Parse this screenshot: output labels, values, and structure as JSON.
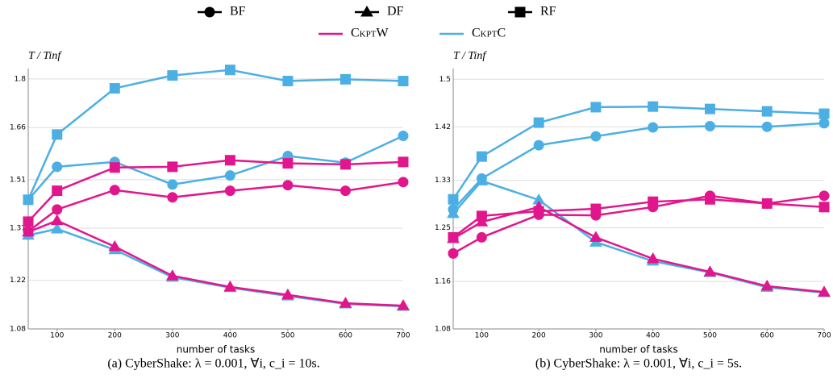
{
  "legend": {
    "shapes": [
      {
        "name": "BF",
        "shape": "circle"
      },
      {
        "name": "DF",
        "shape": "triangle"
      },
      {
        "name": "RF",
        "shape": "square"
      }
    ],
    "colors": [
      {
        "name": "CkptW",
        "color": "#e2168c"
      },
      {
        "name": "CkptC",
        "color": "#4cafe3"
      }
    ]
  },
  "chart_data": [
    {
      "type": "line",
      "caption": "(a) CyberShake: λ = 0.001, ∀i, c_i = 10s.",
      "y_label": "T / Tinf",
      "x_label": "number of tasks",
      "x": [
        50,
        100,
        200,
        300,
        400,
        500,
        600,
        700
      ],
      "xlim": [
        50,
        700
      ],
      "xticks": [
        100,
        200,
        300,
        400,
        500,
        600,
        700
      ],
      "ylim": [
        1.08,
        1.83
      ],
      "yticks": [
        1.08,
        1.22,
        1.37,
        1.51,
        1.66,
        1.8
      ],
      "grid": true,
      "series": [
        {
          "shape": "square",
          "color": "#4cafe3",
          "values": [
            1.452,
            1.64,
            1.773,
            1.81,
            1.826,
            1.794,
            1.799,
            1.794
          ]
        },
        {
          "shape": "circle",
          "color": "#4cafe3",
          "values": [
            1.452,
            1.547,
            1.561,
            1.496,
            1.522,
            1.578,
            1.559,
            1.636
          ]
        },
        {
          "shape": "triangle",
          "color": "#4cafe3",
          "values": [
            1.35,
            1.368,
            1.308,
            1.229,
            1.199,
            1.175,
            1.152,
            1.145
          ]
        },
        {
          "shape": "square",
          "color": "#e2168c",
          "values": [
            1.389,
            1.478,
            1.545,
            1.547,
            1.566,
            1.557,
            1.554,
            1.561
          ]
        },
        {
          "shape": "circle",
          "color": "#e2168c",
          "values": [
            1.361,
            1.424,
            1.48,
            1.459,
            1.478,
            1.494,
            1.478,
            1.503
          ]
        },
        {
          "shape": "triangle",
          "color": "#e2168c",
          "values": [
            1.359,
            1.392,
            1.317,
            1.233,
            1.201,
            1.178,
            1.154,
            1.147
          ]
        }
      ]
    },
    {
      "type": "line",
      "caption": "(b) CyberShake: λ = 0.001, ∀i, c_i = 5s.",
      "y_label": "T / Tinf",
      "x_label": "number of tasks",
      "x": [
        50,
        100,
        200,
        300,
        400,
        500,
        600,
        700
      ],
      "xlim": [
        50,
        700
      ],
      "xticks": [
        100,
        200,
        300,
        400,
        500,
        600,
        700
      ],
      "ylim": [
        1.08,
        1.518
      ],
      "yticks": [
        1.08,
        1.16,
        1.25,
        1.33,
        1.42,
        1.5
      ],
      "grid": true,
      "series": [
        {
          "shape": "square",
          "color": "#4cafe3",
          "values": [
            1.298,
            1.37,
            1.427,
            1.453,
            1.454,
            1.45,
            1.446,
            1.442
          ]
        },
        {
          "shape": "circle",
          "color": "#4cafe3",
          "values": [
            1.281,
            1.333,
            1.389,
            1.404,
            1.419,
            1.421,
            1.42,
            1.426
          ]
        },
        {
          "shape": "triangle",
          "color": "#4cafe3",
          "values": [
            1.274,
            1.329,
            1.297,
            1.226,
            1.194,
            1.175,
            1.15,
            1.141
          ]
        },
        {
          "shape": "square",
          "color": "#e2168c",
          "values": [
            1.234,
            1.27,
            1.278,
            1.282,
            1.294,
            1.298,
            1.291,
            1.285
          ]
        },
        {
          "shape": "circle",
          "color": "#e2168c",
          "values": [
            1.207,
            1.234,
            1.272,
            1.271,
            1.285,
            1.304,
            1.291,
            1.304
          ]
        },
        {
          "shape": "triangle",
          "color": "#e2168c",
          "values": [
            1.232,
            1.26,
            1.285,
            1.234,
            1.198,
            1.176,
            1.152,
            1.142
          ]
        }
      ]
    }
  ]
}
